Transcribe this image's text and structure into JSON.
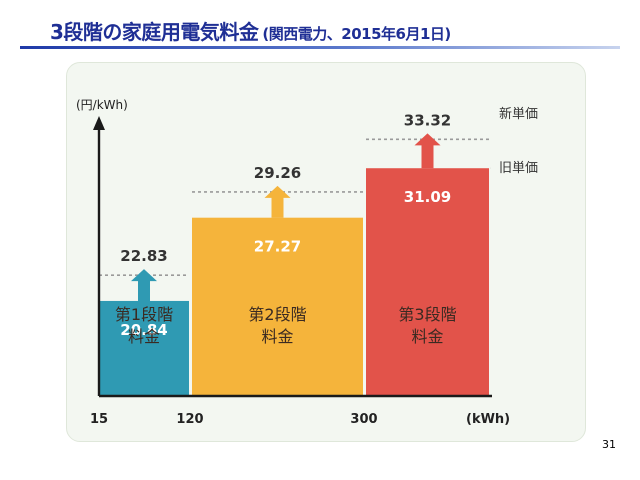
{
  "page": {
    "title": "3段階の家庭用電気料金",
    "subtitle": "(関西電力、2015年6月1日)",
    "page_number": "31"
  },
  "chart_data": {
    "type": "bar",
    "title": "3段階の家庭用電気料金",
    "ylabel": "(円/kWh)",
    "xlabel": "(kWh)",
    "x_ticks": [
      "15",
      "120",
      "300"
    ],
    "bins": [
      {
        "from": 15,
        "to": 120
      },
      {
        "from": 120,
        "to": 300
      },
      {
        "from": 300,
        "to": 420
      }
    ],
    "categories": [
      "第1段階\n料金",
      "第2段階\n料金",
      "第3段階\n料金"
    ],
    "series": [
      {
        "name": "旧単価",
        "values": [
          20.84,
          27.27,
          31.09
        ]
      },
      {
        "name": "新単価",
        "values": [
          22.83,
          29.26,
          33.32
        ]
      }
    ],
    "value_labels_old": [
      "20.84",
      "27.27",
      "31.09"
    ],
    "value_labels_new": [
      "22.83",
      "29.26",
      "33.32"
    ],
    "legend_new": "新単価",
    "legend_old": "旧単価",
    "ylim": [
      13.5,
      35.2
    ],
    "colors": [
      "#2f9ab3",
      "#f5b43b",
      "#e2534a"
    ],
    "arrow_colors": [
      "#2f9ab3",
      "#f5b43b",
      "#e2534a"
    ],
    "grid": false
  }
}
